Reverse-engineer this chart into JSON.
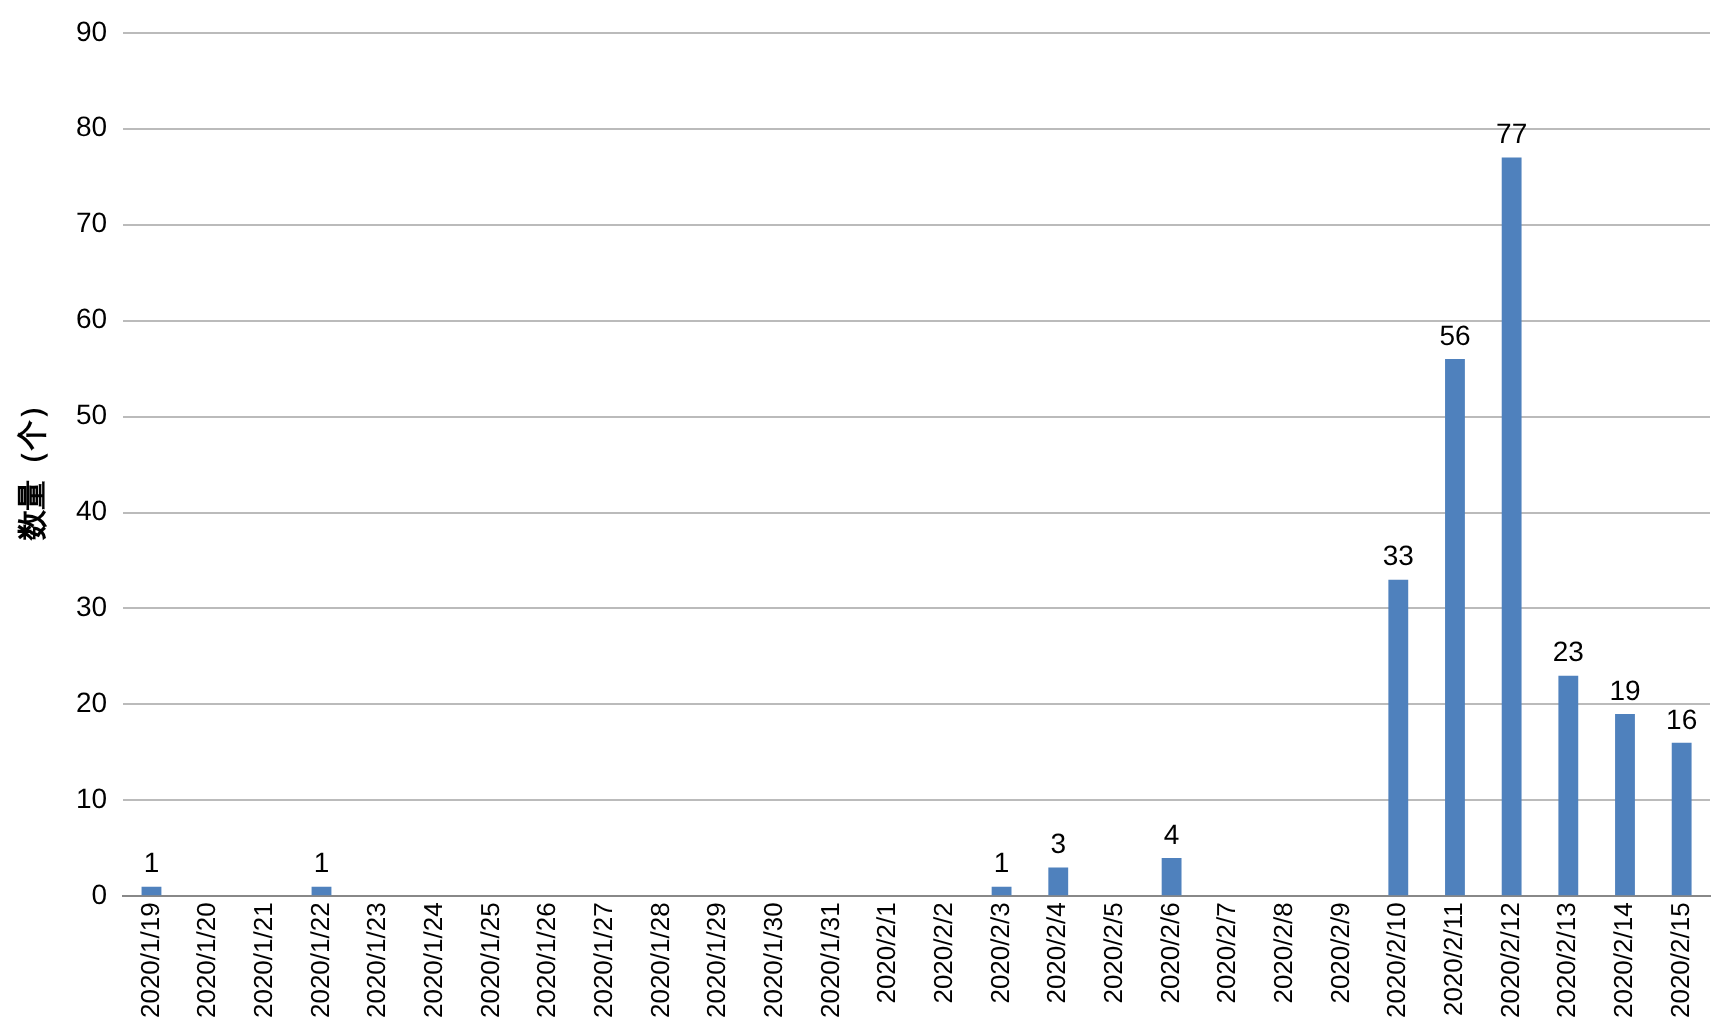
{
  "chart_data": {
    "type": "bar",
    "ylabel": "数量（个）",
    "categories": [
      "2020/1/19",
      "2020/1/20",
      "2020/1/21",
      "2020/1/22",
      "2020/1/23",
      "2020/1/24",
      "2020/1/25",
      "2020/1/26",
      "2020/1/27",
      "2020/1/28",
      "2020/1/29",
      "2020/1/30",
      "2020/1/31",
      "2020/2/1",
      "2020/2/2",
      "2020/2/3",
      "2020/2/4",
      "2020/2/5",
      "2020/2/6",
      "2020/2/7",
      "2020/2/8",
      "2020/2/9",
      "2020/2/10",
      "2020/2/11",
      "2020/2/12",
      "2020/2/13",
      "2020/2/14",
      "2020/2/15"
    ],
    "values": [
      1,
      0,
      0,
      1,
      0,
      0,
      0,
      0,
      0,
      0,
      0,
      0,
      0,
      0,
      0,
      1,
      3,
      0,
      4,
      0,
      0,
      0,
      33,
      56,
      77,
      23,
      19,
      16
    ],
    "value_labels": [
      "1",
      null,
      null,
      "1",
      null,
      null,
      null,
      null,
      null,
      null,
      null,
      null,
      null,
      null,
      null,
      "1",
      "3",
      null,
      "4",
      null,
      null,
      null,
      "33",
      "56",
      "77",
      "23",
      "19",
      "16"
    ],
    "color": "#4f81bd",
    "ylim": [
      0,
      90
    ],
    "yticks": [
      0,
      10,
      20,
      30,
      40,
      50,
      60,
      70,
      80,
      90
    ],
    "grid": "y",
    "legend": false
  }
}
